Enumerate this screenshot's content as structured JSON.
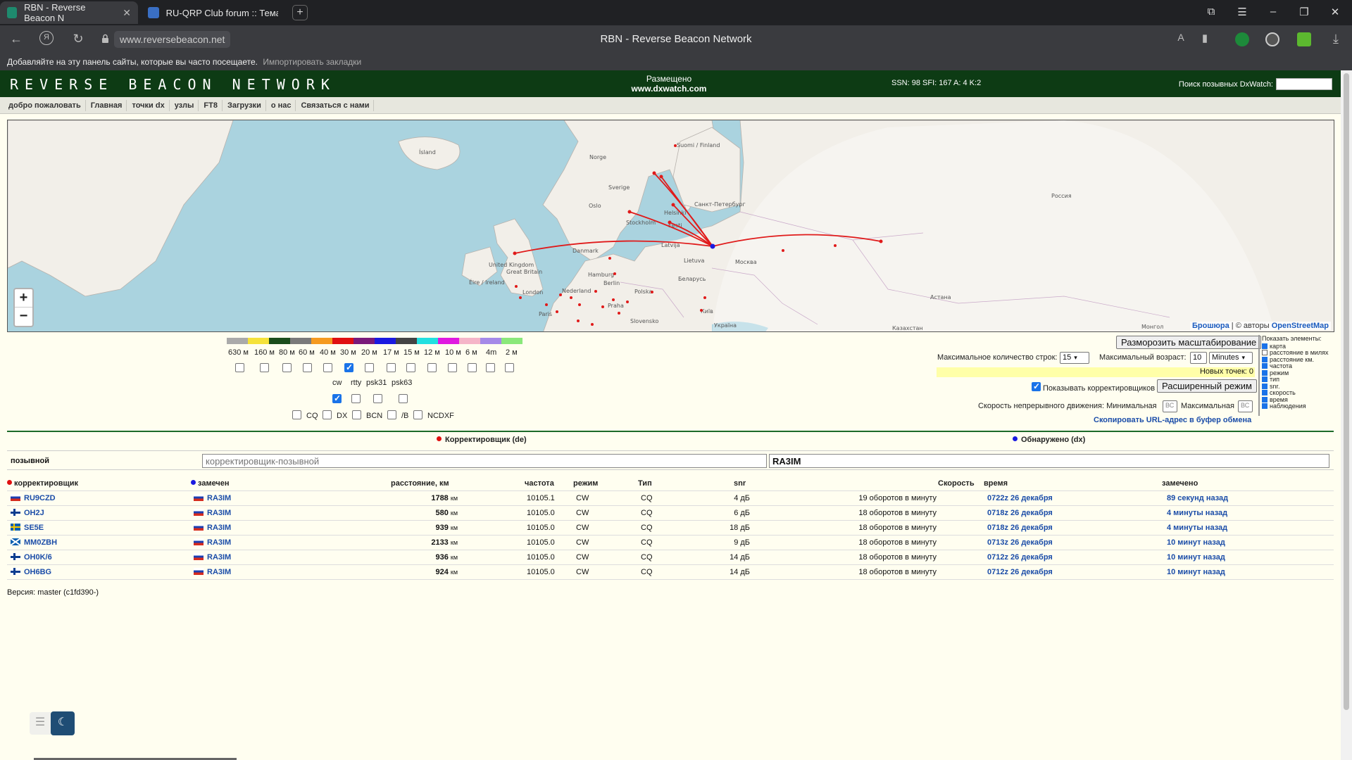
{
  "browser": {
    "tabs": [
      {
        "title": "RBN - Reverse Beacon N",
        "active": true,
        "favicon_color": "#1e8a6e"
      },
      {
        "title": "RU-QRP Club forum :: Тема",
        "active": false,
        "favicon_color": "#3a6fc4"
      }
    ],
    "url": "www.reversebeacon.net",
    "page_title": "RBN - Reverse Beacon Network",
    "bookmarks_hint": "Добавляйте на эту панель сайты, которые вы часто посещаете.",
    "bookmarks_import": "Импортировать закладки"
  },
  "header": {
    "logo": "REVERSE BEACON NETWORK",
    "hosted_label": "Размещено",
    "hosted_site": "www.dxwatch.com",
    "solar": "SSN: 98 SFI: 167 A: 4 K:2",
    "dx_search_label": "Поиск позывных DxWatch:"
  },
  "nav": [
    "добро пожаловать",
    "Главная",
    "точки dx",
    "узлы",
    "FT8",
    "Загрузки",
    "о нас",
    "Связаться с нами"
  ],
  "map": {
    "zoom_in": "+",
    "zoom_out": "−",
    "attribution_link": "Брошюра",
    "attribution_text": " | © авторы ",
    "attribution_osm": "OpenStreetMap",
    "labels": [
      "Ísland",
      "Norge",
      "Suomi / Finland",
      "Sverige",
      "Oslo",
      "Stockholm",
      "Helsinki",
      "Санкт-Петербург",
      "Eesti",
      "Latvija",
      "Lietuva",
      "Danmark",
      "United Kingdom",
      "Great Britain",
      "Éire / Ireland",
      "London",
      "Nederland",
      "Hamburg",
      "Berlin",
      "Polska",
      "Беларусь",
      "Москва",
      "Praha",
      "Paris",
      "Slovensko",
      "Київ",
      "Україна",
      "Россия",
      "Астана",
      "Казахстан",
      "Монгол"
    ]
  },
  "bands": {
    "colors": [
      "#aaaaaa",
      "#f5e23a",
      "#1b4d1b",
      "#7a7a7a",
      "#f59a1f",
      "#e01010",
      "#7a1a7a",
      "#1a1ae0",
      "#444444",
      "#22e0e0",
      "#e01ae0",
      "#f5b5c8",
      "#a58ae8",
      "#8ae87a"
    ],
    "labels": [
      "630 м",
      "160 м",
      "80 м",
      "60 м",
      "40 м",
      "30 м",
      "20 м",
      "17 м",
      "15 м",
      "12 м",
      "10 м",
      "6 м",
      "4m",
      "2 м"
    ],
    "checked": [
      false,
      false,
      false,
      false,
      false,
      true,
      false,
      false,
      false,
      false,
      false,
      false,
      false,
      false
    ]
  },
  "modes": {
    "labels": [
      "cw",
      "rtty",
      "psk31",
      "psk63"
    ],
    "checked": [
      true,
      false,
      false,
      false
    ]
  },
  "types": [
    "CQ",
    "DX",
    "BCN",
    "/B",
    "NCDXF"
  ],
  "controls": {
    "unfreeze_zoom": "Разморозить масштабирование",
    "max_rows_label": "Максимальное количество строк:",
    "max_rows_value": "15",
    "max_age_label": "Максимальный возраст:",
    "max_age_value": "10",
    "max_age_unit": "Minutes",
    "new_points": "Новых точек: 0",
    "show_skimmers": "Показывать корректировщиков",
    "extended_mode": "Расширенный режим",
    "speed_label": "Скорость непрерывного движения: Минимальная",
    "speed_min": "ВС",
    "speed_max_label": "Максимальная",
    "speed_max": "ВС",
    "copy_url": "Скопировать URL-адрес в буфер обмена"
  },
  "show_elements": {
    "title": "Показать элементы:",
    "items": [
      {
        "label": "карта",
        "checked": true
      },
      {
        "label": "расстояние в милях",
        "checked": false
      },
      {
        "label": "расстояние км.",
        "checked": true
      },
      {
        "label": "частота",
        "checked": true
      },
      {
        "label": "режим",
        "checked": true
      },
      {
        "label": "тип",
        "checked": true
      },
      {
        "label": "snr.",
        "checked": true
      },
      {
        "label": "скорость",
        "checked": true
      },
      {
        "label": "время",
        "checked": true
      },
      {
        "label": "наблюдения",
        "checked": true
      }
    ]
  },
  "filter": {
    "de_header": "Корректировщик (de)",
    "dx_header": "Обнаружено (dx)",
    "de_color": "#e01010",
    "dx_color": "#1a1ae0",
    "row_label": "позывной",
    "de_placeholder": "корректировщик-позывной",
    "dx_value": "RA3IM"
  },
  "table": {
    "headers": [
      "корректировщик",
      "замечен",
      "расстояние, км",
      "частота",
      "режим",
      "Тип",
      "snr",
      "Скорость",
      "время",
      "замечено"
    ],
    "rows": [
      {
        "de": "RU9CZD",
        "de_flag": "ru",
        "dx": "RA3IM",
        "dist": "1788",
        "unit": "км",
        "freq": "10105.1",
        "mode": "CW",
        "type": "CQ",
        "snr": "4 дБ",
        "speed": "19 оборотов в минуту",
        "time": "0722z 26 декабря",
        "seen": "89 секунд назад"
      },
      {
        "de": "OH2J",
        "de_flag": "fi",
        "dx": "RA3IM",
        "dist": "580",
        "unit": "км",
        "freq": "10105.0",
        "mode": "CW",
        "type": "CQ",
        "snr": "6 дБ",
        "speed": "18 оборотов в минуту",
        "time": "0718z 26 декабря",
        "seen": "4 минуты назад"
      },
      {
        "de": "SE5E",
        "de_flag": "se",
        "dx": "RA3IM",
        "dist": "939",
        "unit": "км",
        "freq": "10105.0",
        "mode": "CW",
        "type": "CQ",
        "snr": "18 дБ",
        "speed": "18 оборотов в минуту",
        "time": "0718z 26 декабря",
        "seen": "4 минуты назад"
      },
      {
        "de": "MM0ZBH",
        "de_flag": "sc",
        "dx": "RA3IM",
        "dist": "2133",
        "unit": "км",
        "freq": "10105.0",
        "mode": "CW",
        "type": "CQ",
        "snr": "9 дБ",
        "speed": "18 оборотов в минуту",
        "time": "0713z 26 декабря",
        "seen": "10 минут назад"
      },
      {
        "de": "OH0K/6",
        "de_flag": "fi",
        "dx": "RA3IM",
        "dist": "936",
        "unit": "км",
        "freq": "10105.0",
        "mode": "CW",
        "type": "CQ",
        "snr": "14 дБ",
        "speed": "18 оборотов в минуту",
        "time": "0712z 26 декабря",
        "seen": "10 минут назад"
      },
      {
        "de": "OH6BG",
        "de_flag": "fi",
        "dx": "RA3IM",
        "dist": "924",
        "unit": "км",
        "freq": "10105.0",
        "mode": "CW",
        "type": "CQ",
        "snr": "14 дБ",
        "speed": "18 оборотов в минуту",
        "time": "0712z 26 декабря",
        "seen": "10 минут назад"
      }
    ]
  },
  "version": "Версия: master (c1fd390-)"
}
